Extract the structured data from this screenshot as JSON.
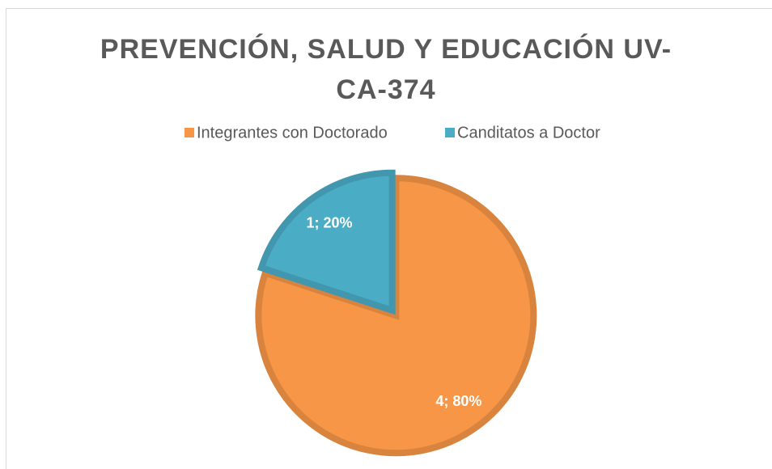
{
  "chart_data": {
    "type": "pie",
    "title": "PREVENCIÓN, SALUD Y EDUCACIÓN UV-CA-374",
    "categories": [
      "Integrantes con Doctorado",
      "Canditatos a Doctor"
    ],
    "values": [
      4,
      1
    ],
    "value_labels": [
      "4; 80%",
      "1; 20%"
    ],
    "colors": [
      "#f79646",
      "#4bacc6"
    ],
    "legend": "top"
  }
}
